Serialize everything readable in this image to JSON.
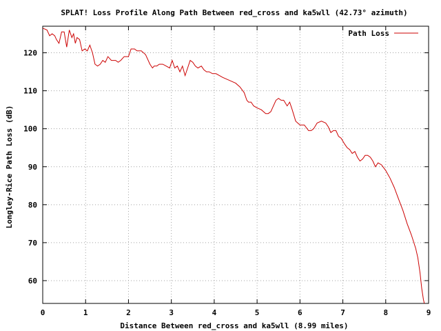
{
  "chart_data": {
    "type": "line",
    "title": "SPLAT! Loss Profile Along Path Between red_cross and ka5wll (42.73° azimuth)",
    "xlabel": "Distance Between red_cross and ka5wll (8.99 miles)",
    "ylabel": "Longley-Rice Path Loss (dB)",
    "xlim": [
      0,
      9
    ],
    "ylim": [
      54,
      127
    ],
    "xticks": [
      "0",
      "1",
      "2",
      "3",
      "4",
      "5",
      "6",
      "7",
      "8",
      "9"
    ],
    "yticks": [
      "60",
      "70",
      "80",
      "90",
      "100",
      "110",
      "120"
    ],
    "grid": true,
    "legend_position": "top-right",
    "colors": {
      "series": "#cc0000",
      "grid": "#a0a0a0",
      "frame": "#000000"
    },
    "series": [
      {
        "name": "Path Loss",
        "x": [
          0.0,
          0.1,
          0.16,
          0.22,
          0.28,
          0.32,
          0.38,
          0.44,
          0.5,
          0.56,
          0.62,
          0.68,
          0.72,
          0.76,
          0.8,
          0.86,
          0.92,
          0.98,
          1.04,
          1.1,
          1.16,
          1.22,
          1.28,
          1.34,
          1.4,
          1.46,
          1.52,
          1.6,
          1.7,
          1.76,
          1.82,
          1.9,
          2.0,
          2.06,
          2.14,
          2.2,
          2.3,
          2.4,
          2.5,
          2.56,
          2.6,
          2.66,
          2.72,
          2.8,
          2.88,
          2.96,
          3.02,
          3.08,
          3.14,
          3.2,
          3.26,
          3.32,
          3.38,
          3.44,
          3.5,
          3.56,
          3.62,
          3.7,
          3.76,
          3.82,
          3.88,
          3.96,
          4.04,
          4.12,
          4.2,
          4.3,
          4.4,
          4.5,
          4.6,
          4.7,
          4.76,
          4.8,
          4.86,
          4.92,
          5.0,
          5.1,
          5.2,
          5.26,
          5.32,
          5.38,
          5.44,
          5.5,
          5.56,
          5.62,
          5.7,
          5.76,
          5.82,
          5.9,
          6.0,
          6.1,
          6.2,
          6.26,
          6.32,
          6.4,
          6.5,
          6.6,
          6.66,
          6.72,
          6.78,
          6.84,
          6.9,
          6.96,
          7.04,
          7.1,
          7.16,
          7.22,
          7.28,
          7.34,
          7.4,
          7.46,
          7.52,
          7.58,
          7.64,
          7.7,
          7.76,
          7.82,
          7.9,
          8.0,
          8.1,
          8.2,
          8.3,
          8.4,
          8.5,
          8.6,
          8.7,
          8.75,
          8.8,
          8.84,
          8.88,
          8.9
        ],
        "y": [
          126.5,
          126,
          124.5,
          125,
          124.5,
          123.5,
          122.5,
          125.5,
          125.5,
          121.5,
          126,
          124,
          125,
          122.5,
          124,
          123.5,
          120.5,
          121,
          120.5,
          122,
          120,
          117,
          116.5,
          117,
          118,
          117.5,
          119,
          118,
          118,
          117.5,
          118,
          119,
          119,
          121,
          121,
          120.5,
          120.5,
          119.5,
          117,
          116,
          116.5,
          116.5,
          117,
          117,
          116.5,
          116,
          118,
          116,
          116.5,
          115,
          116.5,
          114,
          116,
          118,
          117.5,
          116.5,
          116,
          116.5,
          115.5,
          115,
          115,
          114.5,
          114.5,
          114,
          113.5,
          113,
          112.5,
          112,
          111,
          109.5,
          107.5,
          107,
          107,
          106,
          105.5,
          105,
          104,
          104,
          104.5,
          106,
          107.5,
          108,
          107.5,
          107.5,
          106,
          107,
          105,
          102,
          101,
          101,
          99.5,
          99.5,
          100,
          101.5,
          102,
          101.5,
          100.5,
          99,
          99.5,
          99.5,
          98,
          97.5,
          96,
          95,
          94.5,
          93.5,
          94,
          92.5,
          91.5,
          92,
          93,
          93,
          92.5,
          91.5,
          90,
          91,
          90.5,
          89,
          87,
          84.5,
          81.5,
          78.5,
          75,
          72,
          68.5,
          66,
          62,
          58,
          55,
          54
        ]
      }
    ]
  }
}
